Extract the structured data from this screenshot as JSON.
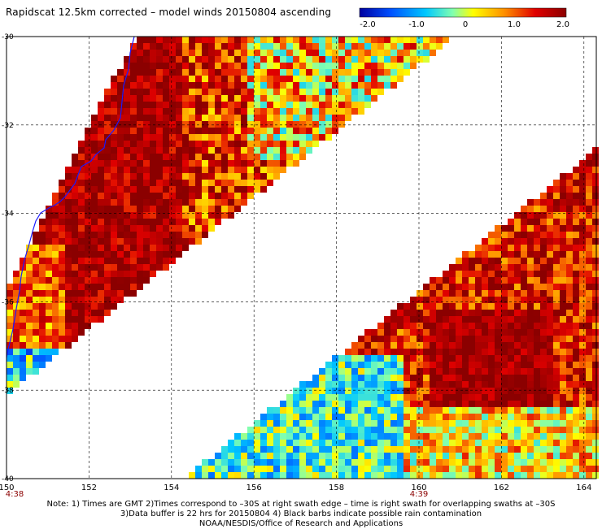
{
  "title": "Rapidscat 12.5km corrected – model winds 20150804 ascending",
  "colorbar": {
    "ticks": [
      "-2.0",
      "-1.0",
      "0",
      "1.0",
      "2.0"
    ],
    "min": -2.0,
    "max": 2.0,
    "colors": [
      "#0000a0",
      "#0050ff",
      "#00c8ff",
      "#80ffb0",
      "#ffff00",
      "#ff9000",
      "#e00000",
      "#8b0000"
    ]
  },
  "map": {
    "lon_labels": [
      "150",
      "152",
      "154",
      "156",
      "158",
      "160",
      "162",
      "164"
    ],
    "lat_labels": [
      "-30",
      "-32",
      "-34",
      "-36",
      "-38",
      "-40"
    ],
    "time_labels": {
      "left": "4:38",
      "right": "4:39"
    },
    "coastline_color": "#1a1aff"
  },
  "notes": {
    "line1": "Note: 1) Times are GMT 2)Times correspond to –30S at right swath edge – time is right swath for overlapping swaths at –30S",
    "line2": "3)Data buffer is 22 hrs for 20150804 4) Black barbs indicate possible rain contamination",
    "line3": "NOAA/NESDIS/Office of Research and Applications"
  }
}
